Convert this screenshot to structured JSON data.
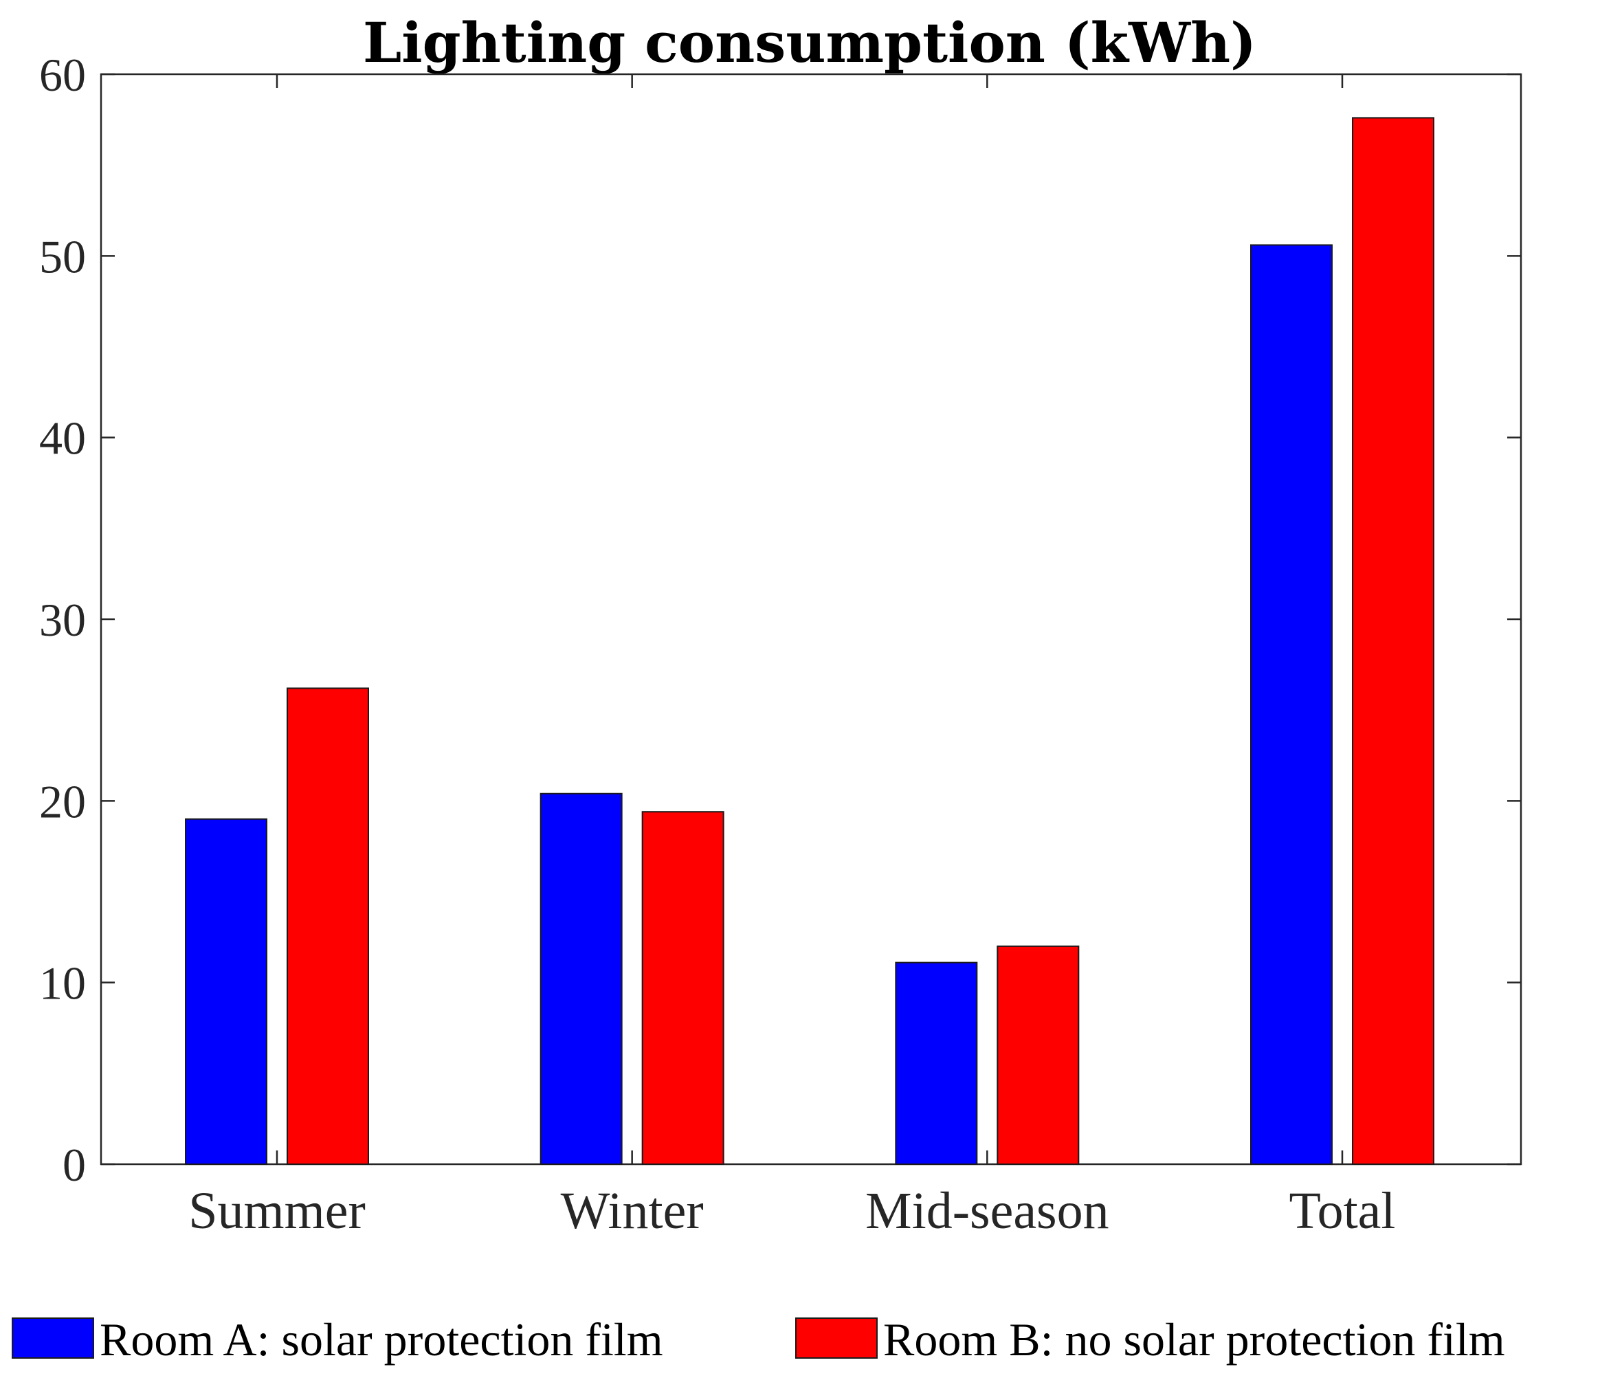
{
  "chart_data": {
    "type": "bar",
    "title": "Lighting consumption (kWh)",
    "xlabel": "",
    "ylabel": "",
    "categories": [
      "Summer",
      "Winter",
      "Mid-season",
      "Total"
    ],
    "series": [
      {
        "name": "Room A: solar protection film",
        "color": "#0000ff",
        "values": [
          19.0,
          20.4,
          11.1,
          50.6
        ]
      },
      {
        "name": "Room B: no solar protection film",
        "color": "#ff0000",
        "values": [
          26.2,
          19.4,
          12.0,
          57.6
        ]
      }
    ],
    "ylim": [
      0,
      60
    ],
    "yticks": [
      "0",
      "10",
      "20",
      "30",
      "40",
      "50",
      "60"
    ],
    "grid": false,
    "legend_position": "bottom"
  }
}
